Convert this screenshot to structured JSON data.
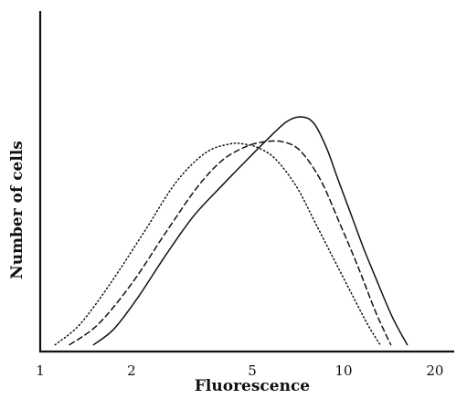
{
  "chart_data": {
    "type": "line",
    "title": "",
    "xlabel": "Fluorescence",
    "ylabel": "Number of cells",
    "x_scale": "log",
    "xlim": [
      1,
      25
    ],
    "ylim": [
      0,
      1
    ],
    "x_ticks": [
      1,
      2,
      5,
      10,
      20
    ],
    "x_tick_labels": [
      "1",
      "2",
      "5",
      "10",
      "20"
    ],
    "grid": false,
    "legend": "none",
    "series": [
      {
        "line_style": "dotted",
        "x": [
          1.12,
          1.35,
          1.7,
          2.2,
          2.8,
          3.5,
          4.2,
          4.7,
          5.3,
          6.0,
          7.0,
          8.0,
          9.2,
          10.5,
          12.0,
          13.2
        ],
        "y": [
          0.03,
          0.12,
          0.3,
          0.53,
          0.75,
          0.88,
          0.92,
          0.92,
          0.9,
          0.85,
          0.73,
          0.58,
          0.42,
          0.27,
          0.12,
          0.03
        ]
      },
      {
        "line_style": "dashed",
        "x": [
          1.25,
          1.55,
          2.0,
          2.6,
          3.3,
          4.0,
          4.8,
          5.5,
          6.3,
          7.2,
          8.4,
          9.7,
          11.2,
          12.8,
          14.3
        ],
        "y": [
          0.03,
          0.12,
          0.3,
          0.53,
          0.73,
          0.85,
          0.91,
          0.93,
          0.93,
          0.89,
          0.76,
          0.57,
          0.37,
          0.17,
          0.03
        ]
      },
      {
        "line_style": "solid",
        "x": [
          1.5,
          1.75,
          2.1,
          2.6,
          3.2,
          4.0,
          4.8,
          5.6,
          6.5,
          7.3,
          8.0,
          8.8,
          9.6,
          10.5,
          11.7,
          13.0,
          14.5,
          16.2
        ],
        "y": [
          0.03,
          0.1,
          0.24,
          0.43,
          0.6,
          0.74,
          0.85,
          0.94,
          1.02,
          1.04,
          1.01,
          0.9,
          0.76,
          0.62,
          0.45,
          0.3,
          0.15,
          0.03
        ]
      }
    ]
  }
}
